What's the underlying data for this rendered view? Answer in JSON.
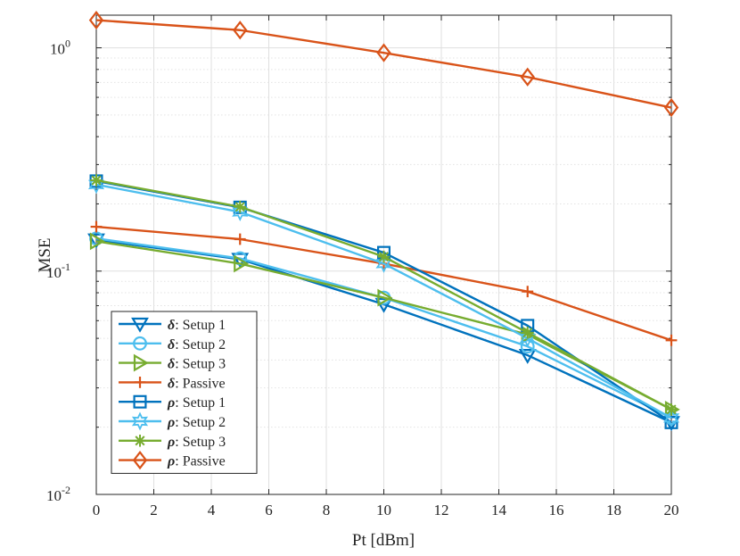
{
  "chart_data": {
    "type": "line",
    "title": "",
    "xlabel": "Pt [dBm]",
    "ylabel": "MSE",
    "xlim": [
      0,
      20
    ],
    "ylim": [
      0.01,
      1.4
    ],
    "yscale": "log",
    "grid": true,
    "legend_position": "bottom-left",
    "x": [
      0,
      5,
      10,
      15,
      20
    ],
    "x_ticks": [
      0,
      2,
      4,
      6,
      8,
      10,
      12,
      14,
      16,
      18,
      20
    ],
    "x_tick_labels": [
      "0",
      "2",
      "4",
      "6",
      "8",
      "10",
      "12",
      "14",
      "16",
      "18",
      "20"
    ],
    "y_ticks": [
      {
        "value": 0.01,
        "base": "10",
        "exp": "-2"
      },
      {
        "value": 0.1,
        "base": "10",
        "exp": "-1"
      },
      {
        "value": 1,
        "base": "10",
        "exp": "0"
      }
    ],
    "series": [
      {
        "symbol": "δ",
        "name": ": Setup 1",
        "color": "#0072BD",
        "marker": "triangle-down",
        "values": [
          0.138,
          0.113,
          0.071,
          0.042,
          0.021
        ]
      },
      {
        "symbol": "δ",
        "name": ": Setup 2",
        "color": "#4DBEEE",
        "marker": "circle",
        "values": [
          0.14,
          0.114,
          0.076,
          0.046,
          0.022
        ]
      },
      {
        "symbol": "δ",
        "name": ": Setup 3",
        "color": "#77AC30",
        "marker": "triangle-right",
        "values": [
          0.136,
          0.108,
          0.076,
          0.052,
          0.024
        ]
      },
      {
        "symbol": "δ",
        "name": ": Passive",
        "color": "#D95319",
        "marker": "plus",
        "values": [
          0.158,
          0.139,
          0.108,
          0.081,
          0.049
        ]
      },
      {
        "symbol": "ρ",
        "name": ": Setup 1",
        "color": "#0072BD",
        "marker": "square",
        "values": [
          0.253,
          0.193,
          0.121,
          0.057,
          0.021
        ]
      },
      {
        "symbol": "ρ",
        "name": ": Setup 2",
        "color": "#4DBEEE",
        "marker": "hexagram",
        "values": [
          0.244,
          0.184,
          0.108,
          0.05,
          0.022
        ]
      },
      {
        "symbol": "ρ",
        "name": ": Setup 3",
        "color": "#77AC30",
        "marker": "asterisk",
        "values": [
          0.255,
          0.194,
          0.116,
          0.053,
          0.024
        ]
      },
      {
        "symbol": "ρ",
        "name": ": Passive",
        "color": "#D95319",
        "marker": "diamond",
        "values": [
          1.33,
          1.2,
          0.95,
          0.74,
          0.54
        ]
      }
    ]
  }
}
